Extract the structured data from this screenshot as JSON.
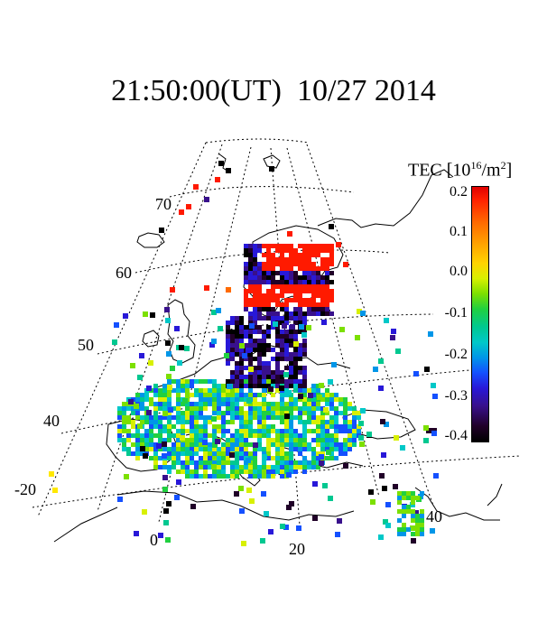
{
  "title": "21:50:00(UT)  10/27 2014",
  "colorbar": {
    "label_prefix": "TEC [10",
    "label_exp": "16",
    "label_suffix": "/m",
    "label_exp2": "2",
    "label_close": "]",
    "ticks": [
      "0.2",
      "0.1",
      "0.0",
      "-0.1",
      "-0.2",
      "-0.3",
      "-0.4"
    ],
    "range": [
      -0.4,
      0.2
    ]
  },
  "grid": {
    "lat_labels": [
      "70",
      "60",
      "50",
      "40"
    ],
    "lon_labels": [
      "-20",
      "0",
      "20",
      "40"
    ]
  },
  "colors": {
    "coastline": "#000000",
    "gridline": "#000000",
    "high": "#e00000",
    "low": "#000000"
  }
}
